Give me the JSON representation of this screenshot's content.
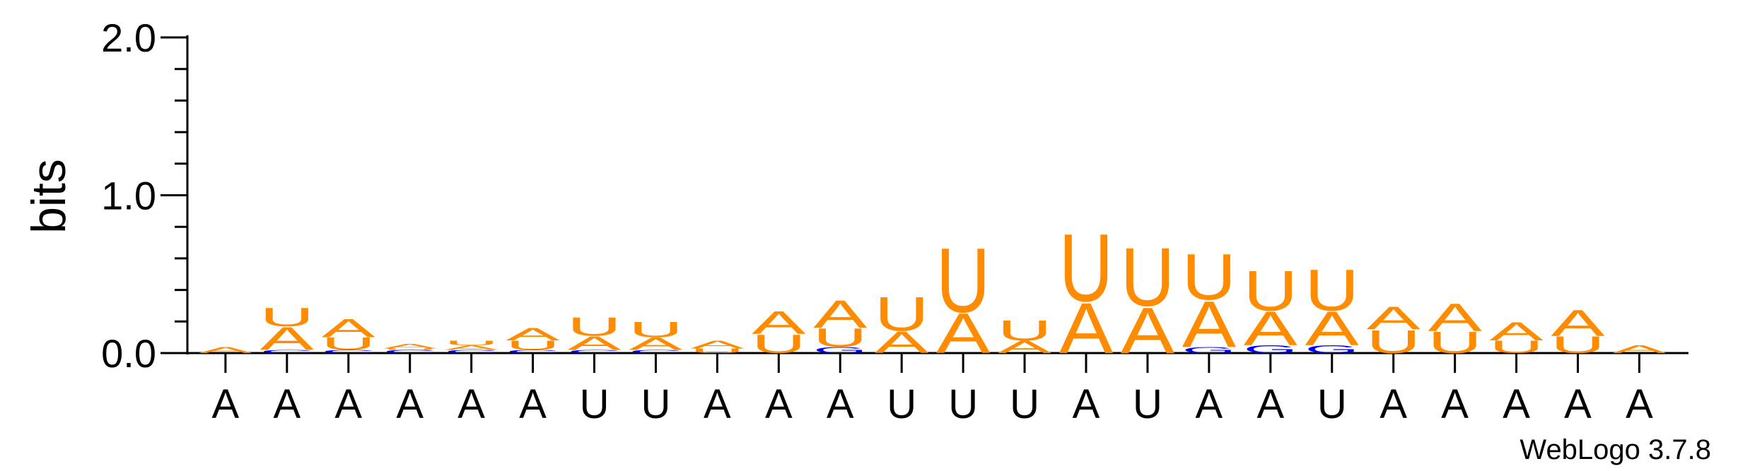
{
  "chart_data": {
    "type": "sequence-logo",
    "ylabel": "bits",
    "ylim": [
      0,
      2.0
    ],
    "yticks": [
      {
        "value": 0.0,
        "label": "0.0"
      },
      {
        "value": 1.0,
        "label": "1.0"
      },
      {
        "value": 2.0,
        "label": "2.0"
      }
    ],
    "xlabels": [
      "A",
      "A",
      "A",
      "A",
      "A",
      "A",
      "U",
      "U",
      "A",
      "A",
      "A",
      "U",
      "U",
      "U",
      "A",
      "U",
      "A",
      "A",
      "U",
      "A",
      "A",
      "A",
      "A",
      "A"
    ],
    "colors": {
      "A": "#ff8c00",
      "U": "#ff8c00",
      "C": "#0000ff",
      "G": "#0000ff"
    },
    "columns": [
      [
        {
          "letter": "A",
          "height": 0.04
        }
      ],
      [
        {
          "letter": "C",
          "height": 0.02
        },
        {
          "letter": "A",
          "height": 0.15
        },
        {
          "letter": "U",
          "height": 0.12
        }
      ],
      [
        {
          "letter": "C",
          "height": 0.02
        },
        {
          "letter": "U",
          "height": 0.08
        },
        {
          "letter": "A",
          "height": 0.12
        }
      ],
      [
        {
          "letter": "C",
          "height": 0.02
        },
        {
          "letter": "U",
          "height": 0.01
        },
        {
          "letter": "A",
          "height": 0.03
        }
      ],
      [
        {
          "letter": "C",
          "height": 0.02
        },
        {
          "letter": "A",
          "height": 0.03
        },
        {
          "letter": "U",
          "height": 0.03
        }
      ],
      [
        {
          "letter": "C",
          "height": 0.02
        },
        {
          "letter": "U",
          "height": 0.06
        },
        {
          "letter": "A",
          "height": 0.08
        }
      ],
      [
        {
          "letter": "C",
          "height": 0.02
        },
        {
          "letter": "A",
          "height": 0.09
        },
        {
          "letter": "U",
          "height": 0.12
        }
      ],
      [
        {
          "letter": "C",
          "height": 0.02
        },
        {
          "letter": "A",
          "height": 0.08
        },
        {
          "letter": "U",
          "height": 0.1
        }
      ],
      [
        {
          "letter": "U",
          "height": 0.03
        },
        {
          "letter": "A",
          "height": 0.05
        }
      ],
      [
        {
          "letter": "U",
          "height": 0.12
        },
        {
          "letter": "A",
          "height": 0.15
        }
      ],
      [
        {
          "letter": "G",
          "height": 0.04
        },
        {
          "letter": "U",
          "height": 0.12
        },
        {
          "letter": "A",
          "height": 0.18
        }
      ],
      [
        {
          "letter": "A",
          "height": 0.14
        },
        {
          "letter": "U",
          "height": 0.22
        }
      ],
      [
        {
          "letter": "A",
          "height": 0.26
        },
        {
          "letter": "U",
          "height": 0.42
        }
      ],
      [
        {
          "letter": "A",
          "height": 0.08
        },
        {
          "letter": "U",
          "height": 0.13
        }
      ],
      [
        {
          "letter": "A",
          "height": 0.33
        },
        {
          "letter": "U",
          "height": 0.44
        }
      ],
      [
        {
          "letter": "A",
          "height": 0.3
        },
        {
          "letter": "U",
          "height": 0.38
        }
      ],
      [
        {
          "letter": "G",
          "height": 0.04
        },
        {
          "letter": "A",
          "height": 0.3
        },
        {
          "letter": "U",
          "height": 0.3
        }
      ],
      [
        {
          "letter": "G",
          "height": 0.05
        },
        {
          "letter": "A",
          "height": 0.22
        },
        {
          "letter": "U",
          "height": 0.26
        }
      ],
      [
        {
          "letter": "G",
          "height": 0.05
        },
        {
          "letter": "A",
          "height": 0.22
        },
        {
          "letter": "U",
          "height": 0.27
        }
      ],
      [
        {
          "letter": "U",
          "height": 0.15
        },
        {
          "letter": "A",
          "height": 0.15
        }
      ],
      [
        {
          "letter": "U",
          "height": 0.14
        },
        {
          "letter": "A",
          "height": 0.18
        }
      ],
      [
        {
          "letter": "U",
          "height": 0.08
        },
        {
          "letter": "A",
          "height": 0.12
        }
      ],
      [
        {
          "letter": "U",
          "height": 0.11
        },
        {
          "letter": "A",
          "height": 0.17
        }
      ],
      [
        {
          "letter": "A",
          "height": 0.05
        }
      ]
    ],
    "credit": "WebLogo 3.7.8"
  }
}
